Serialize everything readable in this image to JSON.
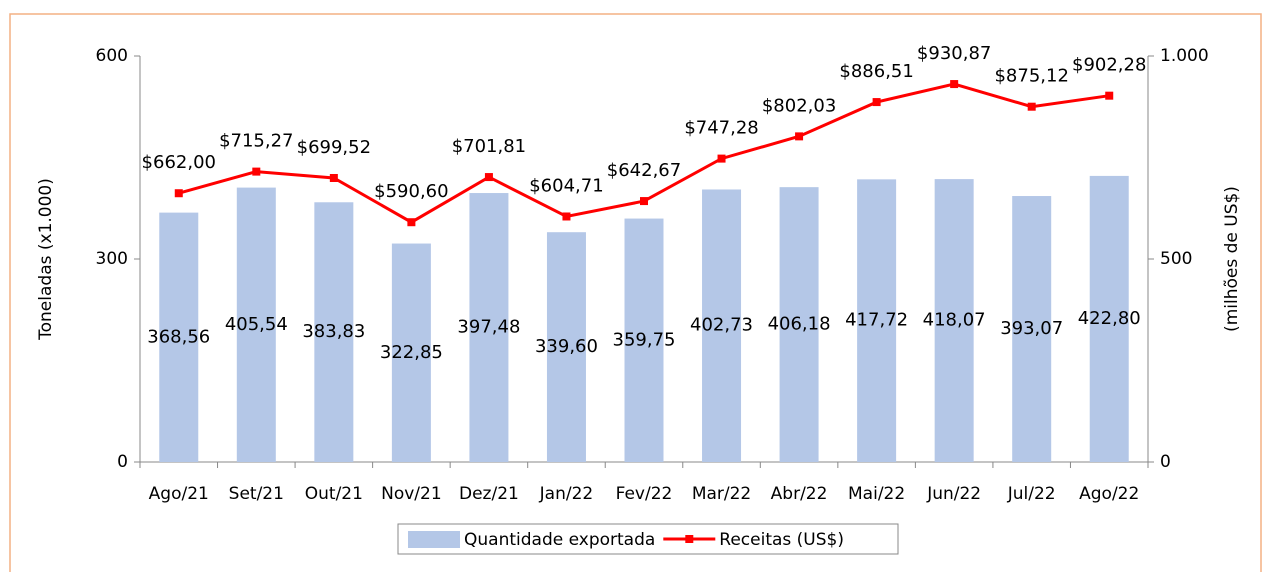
{
  "chart_data": {
    "type": "bar",
    "categories": [
      "Ago/21",
      "Set/21",
      "Out/21",
      "Nov/21",
      "Dez/21",
      "Jan/22",
      "Fev/22",
      "Mar/22",
      "Abr/22",
      "Mai/22",
      "Jun/22",
      "Jul/22",
      "Ago/22"
    ],
    "series": [
      {
        "name": "Quantidade exportada",
        "color": "#b4c7e7",
        "type": "bar",
        "values": [
          368.56,
          405.54,
          383.83,
          322.85,
          397.48,
          339.6,
          359.75,
          402.73,
          406.18,
          417.72,
          418.07,
          393.07,
          422.8
        ],
        "value_labels": [
          "368,56",
          "405,54",
          "383,83",
          "322,85",
          "397,48",
          "339,60",
          "359,75",
          "402,73",
          "406,18",
          "417,72",
          "418,07",
          "393,07",
          "422,80"
        ]
      },
      {
        "name": "Receitas (US$)",
        "color": "#ff0000",
        "type": "line",
        "axis": "y2",
        "values": [
          662.0,
          715.27,
          699.52,
          590.6,
          701.81,
          604.71,
          642.67,
          747.28,
          802.03,
          886.51,
          930.87,
          875.12,
          902.28
        ],
        "value_labels": [
          "$662,00",
          "$715,27",
          "$699,52",
          "$590,60",
          "$701,81",
          "$604,71",
          "$642,67",
          "$747,28",
          "$802,03",
          "$886,51",
          "$930,87",
          "$875,12",
          "$902,28"
        ]
      }
    ],
    "ylabel": "Toneladas (x1.000)",
    "y2label": "(milhões de US$)",
    "ylim": [
      0,
      600
    ],
    "yticks": [
      0,
      300,
      600
    ],
    "y2lim": [
      0,
      1000
    ],
    "y2ticks": [
      0,
      500,
      {
        "value": 1000,
        "label": "1.000"
      }
    ],
    "legend": "bottom"
  }
}
